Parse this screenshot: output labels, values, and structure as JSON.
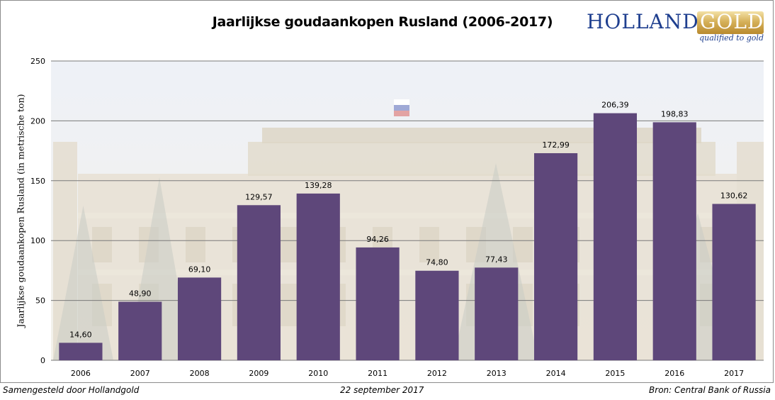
{
  "header": {
    "title": "Jaarlijkse goudaankopen Rusland (2006-2017)"
  },
  "logo": {
    "word1": "HOLLAND",
    "word2": "GOLD",
    "tagline": "qualified to gold"
  },
  "footer": {
    "left": "Samengesteld door Hollandgold",
    "center": "22 september 2017",
    "right": "Bron: Central Bank of Russia"
  },
  "colors": {
    "bar": "#5e477a",
    "grid": "#7a7a7a",
    "logo_blue": "#1f3f8f",
    "logo_gold": "#c9a247"
  },
  "chart_data": {
    "type": "bar",
    "title": "Jaarlijkse goudaankopen Rusland (2006-2017)",
    "xlabel": "",
    "ylabel": "Jaarlijkse goudaankopen Rusland (in metrische ton)",
    "categories": [
      "2006",
      "2007",
      "2008",
      "2009",
      "2010",
      "2011",
      "2012",
      "2013",
      "2014",
      "2015",
      "2016",
      "2017"
    ],
    "values": [
      14.6,
      48.9,
      69.1,
      129.57,
      139.28,
      94.26,
      74.8,
      77.43,
      172.99,
      206.39,
      198.83,
      130.62
    ],
    "value_labels": [
      "14,60",
      "48,90",
      "69,10",
      "129,57",
      "139,28",
      "94,26",
      "74,80",
      "77,43",
      "172,99",
      "206,39",
      "198,83",
      "130,62"
    ],
    "ylim": [
      0,
      250
    ],
    "yticks": [
      0,
      50,
      100,
      150,
      200,
      250
    ],
    "grid": true,
    "legend": "none",
    "background": "faded photo of the Bank of Russia building"
  }
}
